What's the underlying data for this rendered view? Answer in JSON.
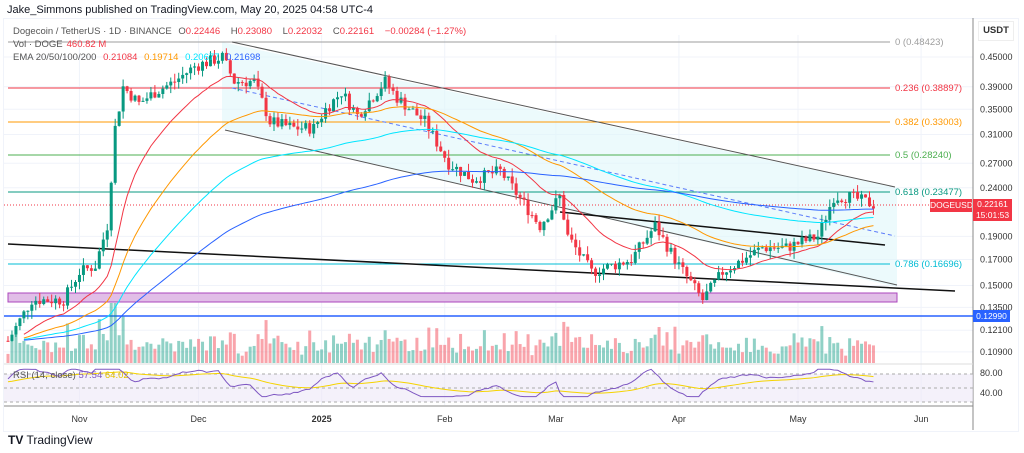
{
  "header": "Jake_Simmons published on TradingView.com, May 20, 2025 04:58 UTC-4",
  "legend": {
    "symbol": "Dogecoin / TetherUS · 1D · BINANCE",
    "o_label": "O",
    "o": "0.22446",
    "h_label": "H",
    "h": "0.23080",
    "l_label": "L",
    "l": "0.22032",
    "c_label": "C",
    "c": "0.22161",
    "change": "−0.00284 (−1.27%)",
    "vol_label": "Vol · DOGE",
    "vol": "460.82 M",
    "ema_label": "EMA 20/50/100/200",
    "ema": [
      "0.21084",
      "0.19714",
      "0.20677",
      "0.21698"
    ],
    "rsi_label": "RSI (14, close)",
    "rsi": [
      "57.54",
      "64.02"
    ]
  },
  "axis": {
    "currency": "USDT",
    "price_ticks": [
      "0.45000",
      "0.39000",
      "0.35000",
      "0.31000",
      "0.27000",
      "0.24000",
      "0.19000",
      "0.17000",
      "0.15000",
      "0.13500",
      "0.12100",
      "0.10900"
    ],
    "rsi_ticks": [
      "80.00",
      "40.00"
    ],
    "time_ticks": [
      "Nov",
      "Dec",
      "2025",
      "Feb",
      "Mar",
      "Apr",
      "May",
      "Jun"
    ]
  },
  "price_tag": {
    "symbol": "DOGEUSDT",
    "price": "0.22161",
    "countdown": "15:01:53"
  },
  "level_tag": "0.12990",
  "fib": [
    {
      "label": "0 (0.48423)",
      "color": "#9e9e9e"
    },
    {
      "label": "0.236 (0.38897)",
      "color": "#f23645"
    },
    {
      "label": "0.382 (0.33003)",
      "color": "#ff9800"
    },
    {
      "label": "0.5 (0.28240)",
      "color": "#4caf50"
    },
    {
      "label": "0.618 (0.23477)",
      "color": "#089981"
    },
    {
      "label": "0.786 (0.16696)",
      "color": "#00bcd4"
    }
  ],
  "colors": {
    "up": "#089981",
    "down": "#f23645",
    "ema20": "#f23645",
    "ema50": "#ff9800",
    "ema100": "#00e5ff",
    "ema200": "#2962ff",
    "rsi": "#7e57c2",
    "rsi_ma": "#f5d300"
  },
  "logo": "TradingView",
  "chart_data": {
    "type": "candlestick",
    "scale": "log",
    "ylim": [
      0.105,
      0.5
    ],
    "dates": [
      "2024-10-14",
      "2024-10-20",
      "2024-10-28",
      "2024-11-01",
      "2024-11-05",
      "2024-11-08",
      "2024-11-10",
      "2024-11-12",
      "2024-11-16",
      "2024-11-20",
      "2024-11-25",
      "2024-11-30",
      "2024-12-07",
      "2024-12-10",
      "2024-12-15",
      "2024-12-19",
      "2024-12-25",
      "2024-12-30",
      "2025-01-02",
      "2025-01-06",
      "2025-01-10",
      "2025-01-17",
      "2025-01-20",
      "2025-01-27",
      "2025-02-02",
      "2025-02-08",
      "2025-02-15",
      "2025-02-25",
      "2025-03-02",
      "2025-03-04",
      "2025-03-10",
      "2025-03-20",
      "2025-03-26",
      "2025-04-01",
      "2025-04-07",
      "2025-04-12",
      "2025-04-22",
      "2025-04-28",
      "2025-05-06",
      "2025-05-10",
      "2025-05-14",
      "2025-05-20"
    ],
    "close": [
      0.115,
      0.14,
      0.14,
      0.16,
      0.165,
      0.2,
      0.32,
      0.39,
      0.36,
      0.38,
      0.4,
      0.43,
      0.45,
      0.4,
      0.4,
      0.33,
      0.32,
      0.32,
      0.35,
      0.38,
      0.34,
      0.4,
      0.37,
      0.33,
      0.27,
      0.25,
      0.26,
      0.2,
      0.23,
      0.19,
      0.16,
      0.17,
      0.2,
      0.165,
      0.14,
      0.16,
      0.18,
      0.18,
      0.19,
      0.23,
      0.23,
      0.2216
    ]
  }
}
